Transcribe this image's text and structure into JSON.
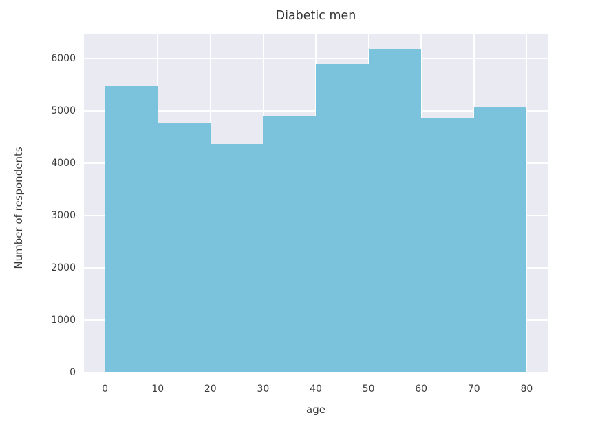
{
  "chart_data": {
    "type": "bar",
    "subtype": "histogram",
    "title": "Diabetic men",
    "xlabel": "age",
    "ylabel": "Number of respondents",
    "bin_edges": [
      0,
      10,
      20,
      30,
      40,
      50,
      60,
      70,
      80
    ],
    "values": [
      5480,
      4760,
      4370,
      4900,
      5900,
      6190,
      4850,
      5060
    ],
    "xticks": [
      0,
      10,
      20,
      30,
      40,
      50,
      60,
      70,
      80
    ],
    "yticks": [
      0,
      1000,
      2000,
      3000,
      4000,
      5000,
      6000
    ],
    "xlim": [
      -4,
      84
    ],
    "ylim": [
      0,
      6460
    ],
    "grid": true,
    "legend": false,
    "colors": {
      "bar": "#7bc2dc",
      "plot_bg": "#eaeaf2",
      "grid": "#ffffff",
      "text": "#3a3a3a",
      "fig_bg": "#ffffff"
    }
  }
}
